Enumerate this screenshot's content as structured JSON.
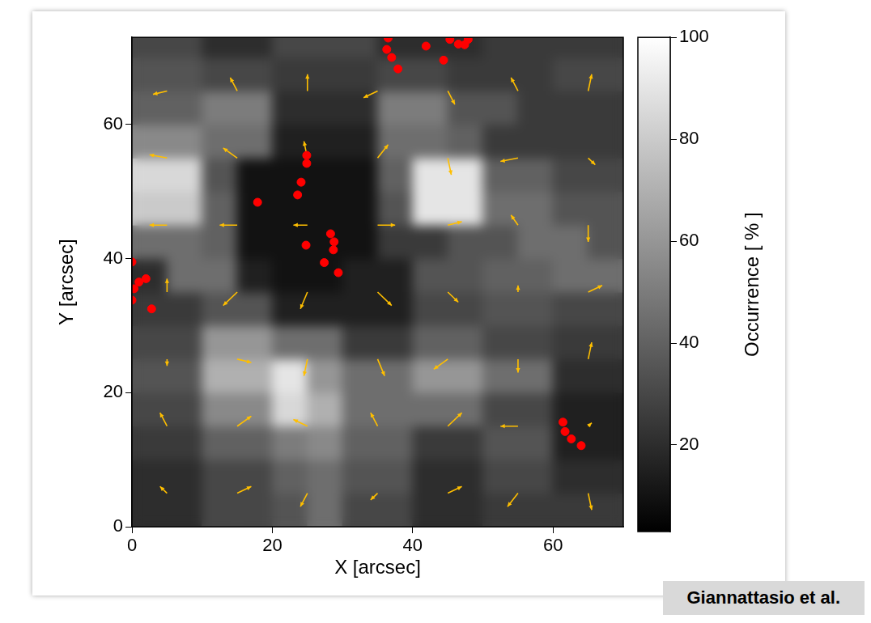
{
  "chart_data": {
    "type": "heatmap",
    "xlabel": "X [arcsec]",
    "ylabel": "Y [arcsec]",
    "xlim": [
      0,
      70
    ],
    "ylim": [
      0,
      73
    ],
    "xticks": [
      0,
      20,
      40,
      60
    ],
    "yticks": [
      0,
      20,
      40,
      60
    ],
    "grid": false,
    "annotations": [
      "Giannattasio et al."
    ],
    "heatmap": {
      "x_edges": [
        0,
        5,
        10,
        15,
        20,
        25,
        30,
        35,
        40,
        45,
        50,
        55,
        60,
        65,
        70
      ],
      "y_edges": [
        0,
        5,
        10,
        15,
        20,
        25,
        30,
        35,
        40,
        45,
        50,
        55,
        60,
        65,
        70,
        75
      ],
      "cells": [
        [
          20,
          20,
          30,
          30,
          35,
          45,
          30,
          30,
          20,
          20,
          25,
          25,
          25,
          25
        ],
        [
          20,
          20,
          30,
          30,
          40,
          45,
          35,
          35,
          20,
          20,
          30,
          30,
          20,
          20
        ],
        [
          25,
          25,
          40,
          40,
          50,
          55,
          40,
          40,
          25,
          25,
          35,
          35,
          15,
          15
        ],
        [
          30,
          30,
          55,
          55,
          85,
          70,
          45,
          45,
          45,
          45,
          30,
          30,
          15,
          15
        ],
        [
          35,
          35,
          70,
          70,
          90,
          60,
          45,
          45,
          60,
          60,
          45,
          45,
          20,
          20
        ],
        [
          30,
          30,
          60,
          60,
          45,
          45,
          25,
          25,
          40,
          40,
          30,
          30,
          25,
          25
        ],
        [
          25,
          25,
          35,
          35,
          15,
          15,
          15,
          15,
          30,
          30,
          35,
          35,
          30,
          30
        ],
        [
          20,
          45,
          45,
          15,
          10,
          10,
          15,
          15,
          35,
          35,
          40,
          40,
          45,
          45
        ],
        [
          45,
          45,
          40,
          10,
          10,
          10,
          10,
          25,
          25,
          35,
          35,
          45,
          45,
          35
        ],
        [
          80,
          80,
          40,
          10,
          10,
          10,
          10,
          35,
          90,
          90,
          45,
          45,
          35,
          35
        ],
        [
          85,
          85,
          35,
          10,
          10,
          10,
          10,
          40,
          90,
          90,
          40,
          40,
          30,
          30
        ],
        [
          55,
          55,
          45,
          45,
          15,
          15,
          15,
          45,
          45,
          40,
          25,
          25,
          25,
          25
        ],
        [
          40,
          40,
          50,
          50,
          20,
          20,
          20,
          50,
          50,
          35,
          35,
          25,
          25,
          25
        ],
        [
          35,
          35,
          30,
          30,
          25,
          25,
          25,
          30,
          30,
          25,
          25,
          25,
          30,
          30
        ],
        [
          30,
          30,
          20,
          20,
          30,
          30,
          30,
          20,
          20,
          20,
          25,
          25,
          25,
          25
        ]
      ],
      "colorbar": {
        "label": "Occurrence [ % ]",
        "range": [
          3,
          100
        ],
        "ticks": [
          20,
          40,
          60,
          80,
          100
        ]
      }
    },
    "arrows": {
      "color": "#ffbf00",
      "x": [
        5,
        15,
        25,
        35,
        45,
        55,
        65,
        5,
        15,
        25,
        35,
        45,
        55,
        65,
        5,
        15,
        25,
        35,
        45,
        55,
        65,
        5,
        15,
        25,
        35,
        45,
        55,
        65,
        5,
        15,
        25,
        35,
        45,
        55,
        65,
        5,
        15,
        25,
        35,
        45,
        55,
        65,
        5,
        15,
        25,
        35,
        45,
        55,
        65
      ],
      "y": [
        5,
        5,
        5,
        5,
        5,
        5,
        5,
        15,
        15,
        15,
        15,
        15,
        15,
        15,
        25,
        25,
        25,
        25,
        25,
        25,
        25,
        35,
        35,
        35,
        35,
        35,
        35,
        35,
        45,
        45,
        45,
        45,
        45,
        45,
        45,
        55,
        55,
        55,
        55,
        55,
        55,
        55,
        65,
        65,
        65,
        65,
        65,
        65,
        65
      ],
      "dx": [
        -1,
        2,
        -1,
        -1,
        2,
        -1.5,
        0.5,
        -1,
        2,
        -2,
        -1,
        2,
        -2.5,
        0.5,
        0,
        2,
        -0.5,
        1,
        -2,
        0,
        0.5,
        0,
        -2,
        -1,
        2,
        1.5,
        0,
        2,
        -2.5,
        -2.5,
        -2,
        2.5,
        2,
        -1,
        0,
        -2.5,
        -2,
        -0.5,
        1.5,
        0.5,
        -2.5,
        1,
        -2,
        -1,
        0,
        -2,
        1,
        -1,
        0.5
      ],
      "dy": [
        1,
        1,
        -2,
        -1,
        1,
        -2,
        -2.5,
        2,
        1.5,
        1,
        2,
        2,
        0,
        0.5,
        -1,
        -0.5,
        -2.5,
        -2.5,
        -1.5,
        -2,
        2.5,
        2,
        -2,
        -2.5,
        -2,
        -1.5,
        1,
        1,
        0,
        0,
        0,
        0,
        0.5,
        1.5,
        -2.5,
        0.5,
        1.5,
        2.5,
        2,
        -2.5,
        -0.5,
        -1,
        -0.5,
        2,
        2.5,
        -1,
        -2,
        2,
        2.5
      ]
    },
    "points": {
      "color": "#ff0000",
      "marker": "circle",
      "x": [
        1.0,
        0.3,
        2.0,
        0.0,
        0.0,
        2.8,
        17.9,
        24.9,
        24.9,
        24.1,
        23.6,
        24.8,
        28.3,
        28.8,
        27.4,
        29.4,
        28.7,
        36.3,
        37.0,
        36.5,
        37.9,
        41.9,
        44.4,
        45.3,
        46.5,
        47.9,
        47.4,
        61.4,
        61.7,
        62.6,
        64.0
      ],
      "y": [
        36.5,
        35.5,
        37.0,
        39.5,
        33.8,
        32.5,
        48.4,
        55.4,
        54.2,
        51.4,
        49.5,
        42.0,
        43.7,
        42.5,
        39.4,
        37.9,
        41.3,
        71.2,
        70.0,
        72.9,
        68.3,
        71.7,
        69.6,
        72.7,
        72.0,
        72.7,
        71.9,
        15.6,
        14.2,
        13.1,
        12.1
      ]
    }
  }
}
